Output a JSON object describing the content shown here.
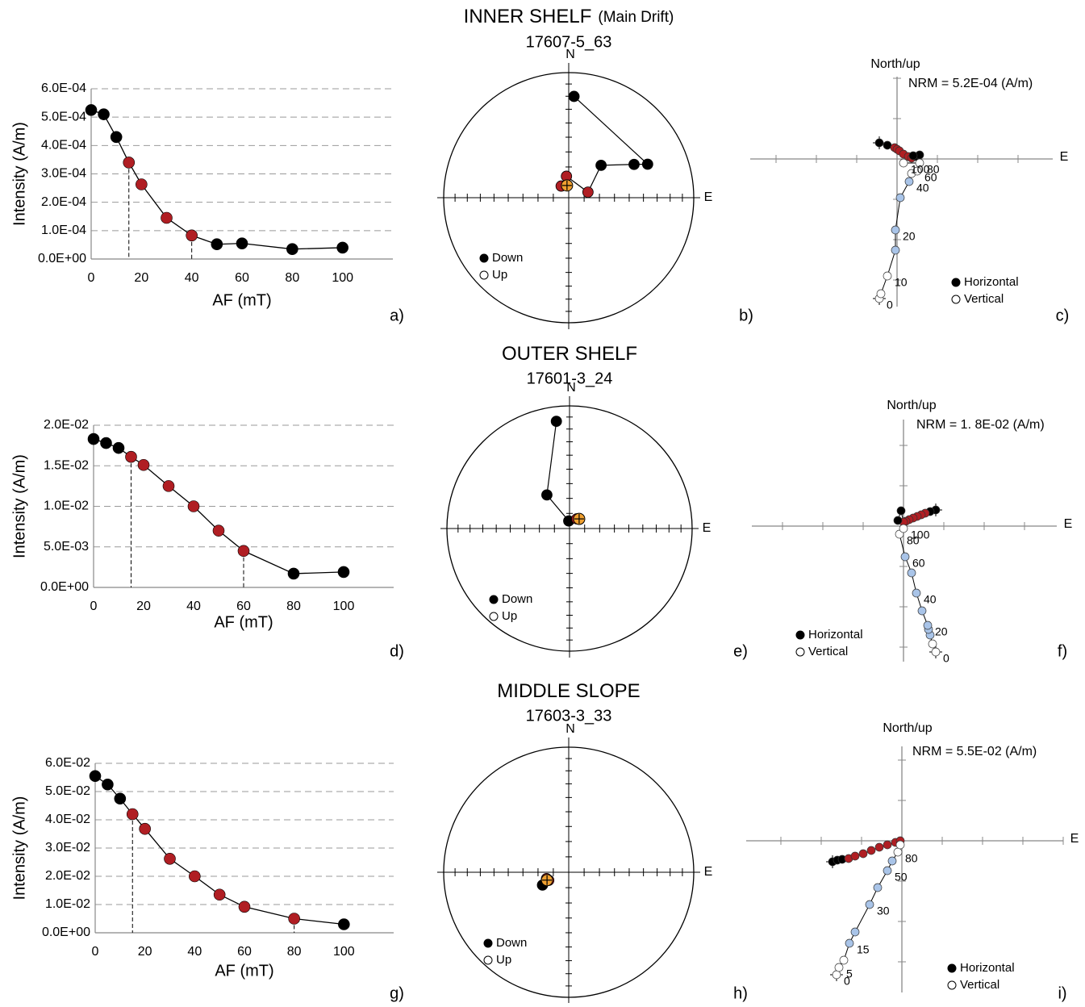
{
  "chart_data": [
    {
      "type": "line",
      "panel_label": "a)",
      "x_label": "AF (mT)",
      "y_label": "Intensity (A/m)",
      "x": [
        0,
        5,
        10,
        15,
        20,
        30,
        40,
        50,
        60,
        80,
        100
      ],
      "values": [
        0.000525,
        0.00051,
        0.00043,
        0.00034,
        0.000263,
        0.000145,
        8.3e-05,
        5.2e-05,
        5.5e-05,
        3.5e-05,
        4e-05
      ],
      "point_colors": [
        "#000000",
        "#000000",
        "#000000",
        "#b01e23",
        "#b01e23",
        "#b01e23",
        "#b01e23",
        "#000000",
        "#000000",
        "#000000",
        "#000000"
      ],
      "marker_x": [
        15,
        40
      ],
      "xlim": [
        0,
        120
      ],
      "xticks": [
        0,
        20,
        40,
        60,
        80,
        100
      ],
      "ylim": [
        0,
        0.0006
      ],
      "yticks": [
        {
          "value": 0,
          "label": "0.0E+00"
        },
        {
          "value": 0.0001,
          "label": "1.0E-04"
        },
        {
          "value": 0.0002,
          "label": "2.0E-04"
        },
        {
          "value": 0.0003,
          "label": "3.0E-04"
        },
        {
          "value": 0.0004,
          "label": "4.0E-04"
        },
        {
          "value": 0.0005,
          "label": "5.0E-04"
        },
        {
          "value": 0.0006,
          "label": "6.0E-04"
        }
      ],
      "grid": true
    },
    {
      "type": "stereonet",
      "title": "INNER SHELF",
      "title_note": "(Main Drift)",
      "subtitle": "17607-5_63",
      "north_label": "N",
      "east_label": "E",
      "legend": [
        "Down",
        "Up"
      ],
      "panel_label": "b)",
      "dec": [
        3,
        67,
        63,
        45,
        74,
        354,
        327
      ],
      "inc": [
        20,
        32,
        41,
        60,
        77,
        76,
        81
      ],
      "point_colors": [
        "#000000",
        "#000000",
        "#000000",
        "#000000",
        "#b01e23",
        "#b01e23",
        "#b01e23"
      ],
      "mean": {
        "dec": 352,
        "inc": 82
      },
      "mean_color": "#f0a030"
    },
    {
      "type": "zijderveld",
      "panel_label": "c)",
      "y_label": "North/up",
      "x_label": "E",
      "annotation": "NRM = 5.2E-04 (A/m)",
      "xlim": [
        -0.000546,
        0.000579
      ],
      "ylim": [
        -0.000549,
        0.000306
      ],
      "series": [
        {
          "name": "Horizontal",
          "x": [
            -6.6e-05,
            -3.6e-05,
            -9e-06,
            0,
            9e-06,
            2.4e-05,
            4.2e-05,
            5.4e-05,
            7.2e-05,
            8.4e-05,
            6e-05
          ],
          "values": [
            6e-05,
            5.1e-05,
            4.2e-05,
            3.6e-05,
            3e-05,
            1.8e-05,
            9e-06,
            3e-06,
            9e-06,
            1.5e-05,
            1.2e-05
          ],
          "colors": [
            "#000000",
            "#000000",
            "#b01e23",
            "#b01e23",
            "#b01e23",
            "#b01e23",
            "#b01e23",
            "#b01e23",
            "#000000",
            "#000000",
            "#000000"
          ]
        },
        {
          "name": "Vertical",
          "x": [
            -6.6e-05,
            -6e-05,
            -3.6e-05,
            -6e-06,
            -6e-06,
            1.2e-05,
            4.5e-05,
            5.4e-05,
            7.5e-05,
            8.4e-05,
            2.4e-05
          ],
          "values": [
            -0.000519,
            -0.000501,
            -0.000435,
            -0.000339,
            -0.000264,
            -0.000144,
            -8.4e-05,
            -5.4e-05,
            -4.5e-05,
            -1.5e-05,
            -1.5e-05
          ],
          "colors": [
            "#ffffff",
            "#ffffff",
            "#ffffff",
            "#a9c4e8",
            "#a9c4e8",
            "#a9c4e8",
            "#a9c4e8",
            "#ffffff",
            "#ffffff",
            "#ffffff",
            "#ffffff"
          ],
          "labels": [
            "0",
            null,
            "10",
            null,
            "20",
            null,
            "40",
            null,
            "60",
            "80",
            "100"
          ]
        }
      ]
    },
    {
      "type": "line",
      "panel_label": "d)",
      "x_label": "AF (mT)",
      "y_label": "Intensity (A/m)",
      "x": [
        0,
        5,
        10,
        15,
        20,
        30,
        40,
        50,
        60,
        80,
        100
      ],
      "values": [
        0.0183,
        0.0178,
        0.0172,
        0.0161,
        0.0151,
        0.0125,
        0.01,
        0.007,
        0.0045,
        0.0017,
        0.0019
      ],
      "point_colors": [
        "#000000",
        "#000000",
        "#000000",
        "#b01e23",
        "#b01e23",
        "#b01e23",
        "#b01e23",
        "#b01e23",
        "#b01e23",
        "#000000",
        "#000000"
      ],
      "marker_x": [
        15,
        60
      ],
      "xlim": [
        0,
        120
      ],
      "xticks": [
        0,
        20,
        40,
        60,
        80,
        100
      ],
      "ylim": [
        0,
        0.02
      ],
      "yticks": [
        {
          "value": 0,
          "label": "0.0E+00"
        },
        {
          "value": 0.005,
          "label": "5.0E-03"
        },
        {
          "value": 0.01,
          "label": "1.0E-02"
        },
        {
          "value": 0.015,
          "label": "1.5E-02"
        },
        {
          "value": 0.02,
          "label": "2.0E-02"
        }
      ],
      "grid": true
    },
    {
      "type": "stereonet",
      "title": "OUTER SHELF",
      "subtitle": "17601-3_24",
      "north_label": "N",
      "east_label": "E",
      "legend": [
        "Down",
        "Up"
      ],
      "panel_label": "e)",
      "dec": [
        353,
        326,
        354,
        37,
        47
      ],
      "inc": [
        13,
        63,
        85,
        82,
        81
      ],
      "point_colors": [
        "#000000",
        "#000000",
        "#000000",
        "#b01e23",
        "#b01e23"
      ],
      "mean": {
        "dec": 45,
        "inc": 81
      },
      "mean_color": "#f0a030"
    },
    {
      "type": "zijderveld",
      "panel_label": "f)",
      "y_label": "North/up",
      "x_label": "E",
      "annotation": "NRM = 1. 8E-02 (A/m)",
      "xlim": [
        -0.0188,
        0.019
      ],
      "ylim": [
        -0.0168,
        0.0132
      ],
      "series": [
        {
          "name": "Horizontal",
          "x": [
            0.004,
            0.0033,
            0.0027,
            0.0022,
            0.0017,
            0.0012,
            0.0007,
            0.0003,
            0,
            -0.0003,
            -0.0007
          ],
          "values": [
            0.002,
            0.0018,
            0.0016,
            0.0014,
            0.0012,
            0.001,
            0.0008,
            0.0006,
            0.0005,
            0.0019,
            0.0007
          ],
          "colors": [
            "#000000",
            "#000000",
            "#b01e23",
            "#b01e23",
            "#b01e23",
            "#b01e23",
            "#b01e23",
            "#b01e23",
            "#b01e23",
            "#000000",
            "#000000"
          ]
        },
        {
          "name": "Vertical",
          "x": [
            0.004,
            0.0036,
            0.0033,
            0.0031,
            0.003,
            0.0023,
            0.0016,
            0.001,
            0.0002,
            -0.0005,
            0
          ],
          "values": [
            -0.0156,
            -0.0146,
            -0.0135,
            -0.0128,
            -0.0123,
            -0.0105,
            -0.0083,
            -0.0058,
            -0.0038,
            -0.001,
            -0.0003
          ],
          "colors": [
            "#ffffff",
            "#ffffff",
            "#a9c4e8",
            "#a9c4e8",
            "#a9c4e8",
            "#a9c4e8",
            "#a9c4e8",
            "#a9c4e8",
            "#a9c4e8",
            "#ffffff",
            "#ffffff"
          ],
          "labels": [
            "0",
            null,
            null,
            null,
            "20",
            null,
            "40",
            null,
            "60",
            "80",
            "100"
          ]
        }
      ]
    },
    {
      "type": "line",
      "panel_label": "g)",
      "x_label": "AF (mT)",
      "y_label": "Intensity (A/m)",
      "x": [
        0,
        5,
        10,
        15,
        20,
        30,
        40,
        50,
        60,
        80,
        100
      ],
      "values": [
        0.0555,
        0.0525,
        0.0475,
        0.042,
        0.0368,
        0.0262,
        0.02,
        0.0135,
        0.0092,
        0.005,
        0.003
      ],
      "point_colors": [
        "#000000",
        "#000000",
        "#000000",
        "#b01e23",
        "#b01e23",
        "#b01e23",
        "#b01e23",
        "#b01e23",
        "#b01e23",
        "#b01e23",
        "#000000"
      ],
      "marker_x": [
        15,
        80
      ],
      "xlim": [
        0,
        120
      ],
      "xticks": [
        0,
        20,
        40,
        60,
        80,
        100
      ],
      "ylim": [
        0,
        0.06
      ],
      "yticks": [
        {
          "value": 0,
          "label": "0.0E+00"
        },
        {
          "value": 0.01,
          "label": "1.0E-02"
        },
        {
          "value": 0.02,
          "label": "2.0E-02"
        },
        {
          "value": 0.03,
          "label": "3.0E-02"
        },
        {
          "value": 0.04,
          "label": "4.0E-02"
        },
        {
          "value": 0.05,
          "label": "5.0E-02"
        },
        {
          "value": 0.06,
          "label": "6.0E-02"
        }
      ],
      "grid": true
    },
    {
      "type": "stereonet",
      "title": "MIDDLE SLOPE",
      "subtitle": "17603-3_33",
      "north_label": "N",
      "east_label": "E",
      "legend": [
        "Down",
        "Up"
      ],
      "panel_label": "h)",
      "dec": [
        244,
        254,
        248
      ],
      "inc": [
        71,
        75,
        76
      ],
      "point_colors": [
        "#000000",
        "#b01e23",
        "#b01e23"
      ],
      "mean": {
        "dec": 250,
        "inc": 75
      },
      "mean_color": "#f0a030"
    },
    {
      "type": "zijderveld",
      "panel_label": "i)",
      "y_label": "North/up",
      "x_label": "E",
      "annotation": "NRM = 5.5E-02 (A/m)",
      "xlim": [
        -0.0579,
        0.06
      ],
      "ylim": [
        -0.0564,
        0.0351
      ],
      "series": [
        {
          "name": "Horizontal",
          "x": [
            -0.0258,
            -0.024,
            -0.0222,
            -0.0198,
            -0.0174,
            -0.0144,
            -0.0114,
            -0.0084,
            -0.0054,
            -0.0024,
            -0.0006
          ],
          "values": [
            -0.0078,
            -0.0072,
            -0.0069,
            -0.0066,
            -0.0057,
            -0.0048,
            -0.0036,
            -0.0024,
            -0.0015,
            -0.0006,
            0
          ],
          "colors": [
            "#000000",
            "#000000",
            "#000000",
            "#b01e23",
            "#b01e23",
            "#b01e23",
            "#b01e23",
            "#b01e23",
            "#b01e23",
            "#b01e23",
            "#b01e23"
          ]
        },
        {
          "name": "Vertical",
          "x": [
            -0.0243,
            -0.0234,
            -0.0216,
            -0.0195,
            -0.0174,
            -0.012,
            -0.009,
            -0.0054,
            -0.0036,
            -0.0015,
            -0.0006
          ],
          "values": [
            -0.0498,
            -0.0471,
            -0.0444,
            -0.0381,
            -0.0339,
            -0.0237,
            -0.0174,
            -0.0111,
            -0.0075,
            -0.0042,
            -0.0015
          ],
          "colors": [
            "#ffffff",
            "#ffffff",
            "#ffffff",
            "#a9c4e8",
            "#a9c4e8",
            "#a9c4e8",
            "#a9c4e8",
            "#a9c4e8",
            "#a9c4e8",
            "#ffffff",
            "#ffffff"
          ],
          "labels": [
            "0",
            "5",
            null,
            "15",
            null,
            "30",
            null,
            "50",
            null,
            "80",
            null
          ]
        }
      ]
    }
  ]
}
